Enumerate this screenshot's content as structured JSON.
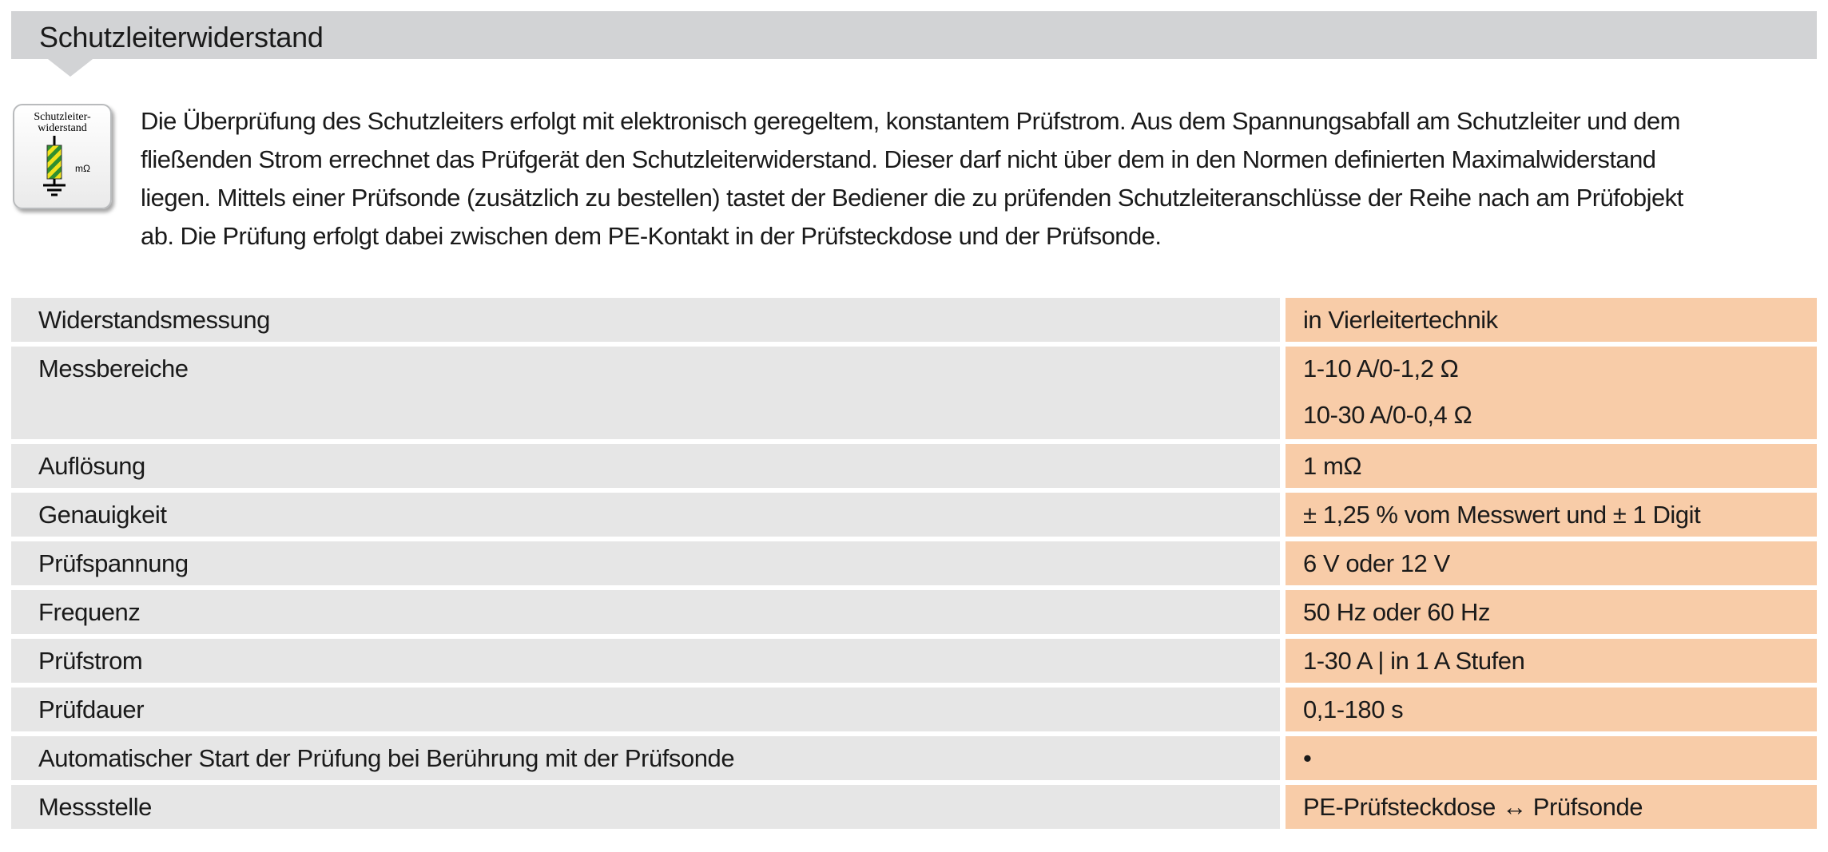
{
  "header": {
    "title": "Schutzleiterwiderstand"
  },
  "icon": {
    "name": "schutzleiterwiderstand-icon",
    "label": "Schutzleiter-\nwiderstand",
    "unit": "mΩ"
  },
  "intro": {
    "lines": [
      "Die Überprüfung des Schutzleiters erfolgt mit elektronisch geregeltem, konstantem Prüfstrom. Aus dem Spannungsabfall am Schutzleiter und dem",
      "fließenden Strom errechnet das Prüfgerät den Schutzleiterwiderstand. Dieser darf nicht über dem in den Normen definierten Maximalwiderstand",
      "liegen. Mittels einer Prüfsonde (zusätzlich zu bestellen) tastet der Bediener die zu prüfenden Schutzleiteranschlüsse der Reihe nach am Prüfobjekt",
      "ab. Die Prüfung erfolgt dabei zwischen dem PE-Kontakt in der Prüfsteckdose und der Prüfsonde."
    ]
  },
  "colors": {
    "header_bg": "#d2d3d5",
    "label_cell_bg": "#e6e6e6",
    "value_cell_bg": "#f8cca8"
  },
  "spec_rows": [
    {
      "label": "Widerstandsmessung",
      "values": [
        "in Vierleitertechnik"
      ]
    },
    {
      "label": "Messbereiche",
      "values": [
        "1-10 A/0-1,2 Ω",
        "10-30 A/0-0,4 Ω"
      ]
    },
    {
      "label": "Auflösung",
      "values": [
        "1 mΩ"
      ]
    },
    {
      "label": "Genauigkeit",
      "values": [
        "± 1,25 % vom Messwert und ± 1 Digit"
      ]
    },
    {
      "label": "Prüfspannung",
      "values": [
        "6 V oder 12 V"
      ]
    },
    {
      "label": "Frequenz",
      "values": [
        "50 Hz oder 60 Hz"
      ]
    },
    {
      "label": "Prüfstrom",
      "values": [
        "1-30 A | in 1 A Stufen"
      ]
    },
    {
      "label": "Prüfdauer",
      "values": [
        "0,1-180 s"
      ]
    },
    {
      "label": "Automatischer Start der Prüfung bei Berührung mit der Prüfsonde",
      "values": [
        "•"
      ]
    },
    {
      "label": "Messstelle",
      "values": [
        "PE-Prüfsteckdose ↔ Prüfsonde"
      ]
    }
  ]
}
